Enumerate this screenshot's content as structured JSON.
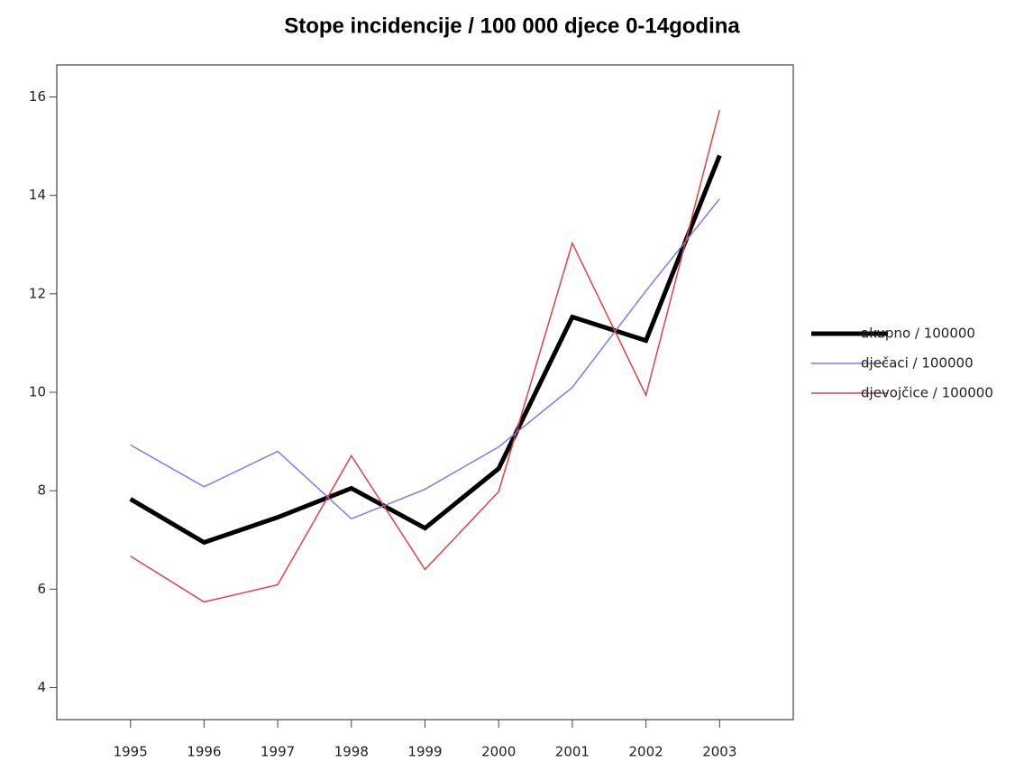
{
  "chart_data": {
    "type": "line",
    "title": "Stope incidencije / 100 000 djece 0-14godina",
    "x": [
      1995,
      1996,
      1997,
      1998,
      1999,
      2000,
      2001,
      2002,
      2003
    ],
    "series": [
      {
        "name": "akupno / 100000",
        "color": "#000000",
        "line_width": 5,
        "values": [
          7.83,
          6.95,
          7.46,
          8.05,
          7.24,
          8.45,
          11.53,
          11.05,
          14.81
        ]
      },
      {
        "name": "dječaci / 100000",
        "color": "#7b7bf0",
        "line_width": 1.5,
        "values": [
          8.93,
          8.08,
          8.8,
          7.43,
          8.03,
          8.89,
          10.1,
          12.06,
          13.93
        ]
      },
      {
        "name": "djevojčice / 100000",
        "color": "#e0404a",
        "line_width": 1.5,
        "values": [
          6.67,
          5.74,
          6.09,
          8.71,
          6.4,
          7.98,
          13.03,
          9.94,
          15.73
        ]
      }
    ],
    "xlim": [
      1994,
      2004
    ],
    "xticks": [
      1995,
      1996,
      1997,
      1998,
      1999,
      2000,
      2001,
      2002,
      2003
    ],
    "ylim": [
      3.35,
      16.65
    ],
    "yticks": [
      4,
      6,
      8,
      10,
      12,
      14,
      16
    ],
    "grid": false,
    "legend": "right"
  }
}
